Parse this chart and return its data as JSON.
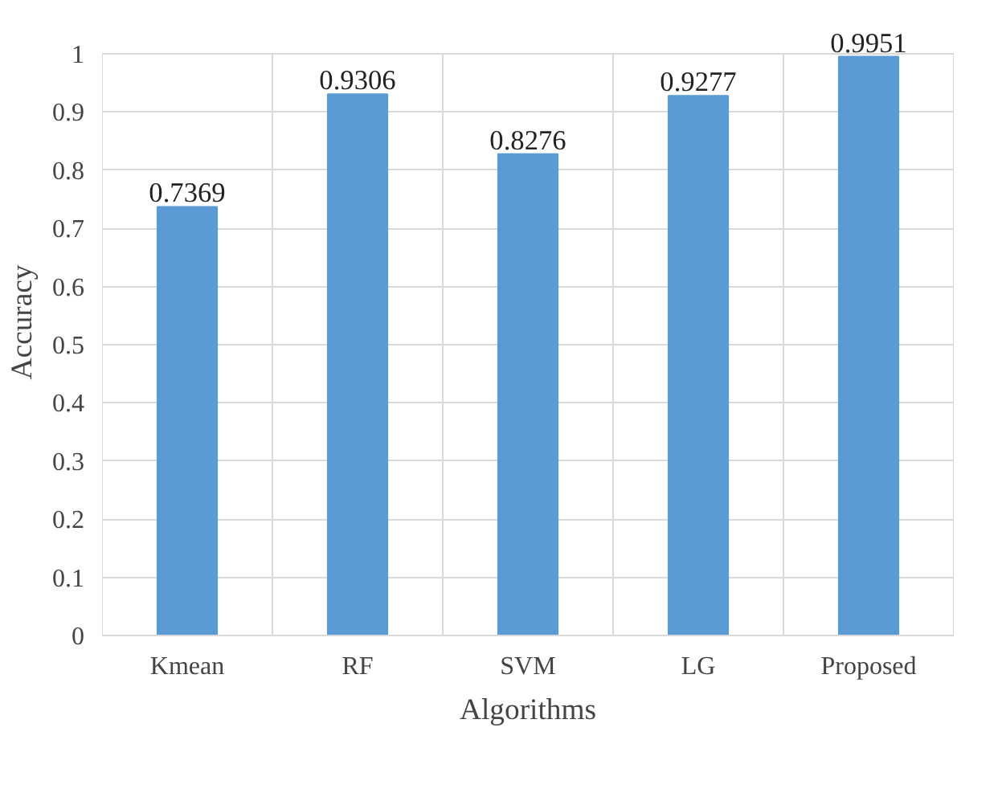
{
  "chart_data": {
    "type": "bar",
    "xlabel": "Algorithms",
    "ylabel": "Accuracy",
    "categories": [
      "Kmean",
      "RF",
      "SVM",
      "LG",
      "Proposed"
    ],
    "values": [
      0.7369,
      0.9306,
      0.8276,
      0.9277,
      0.9951
    ],
    "color": "#5b9bd5",
    "data_labels": true,
    "grid": true,
    "ylim": [
      0,
      1
    ],
    "yticks": [
      0,
      0.1,
      0.2,
      0.3,
      0.4,
      0.5,
      0.6,
      0.7,
      0.8,
      0.9,
      1
    ]
  }
}
